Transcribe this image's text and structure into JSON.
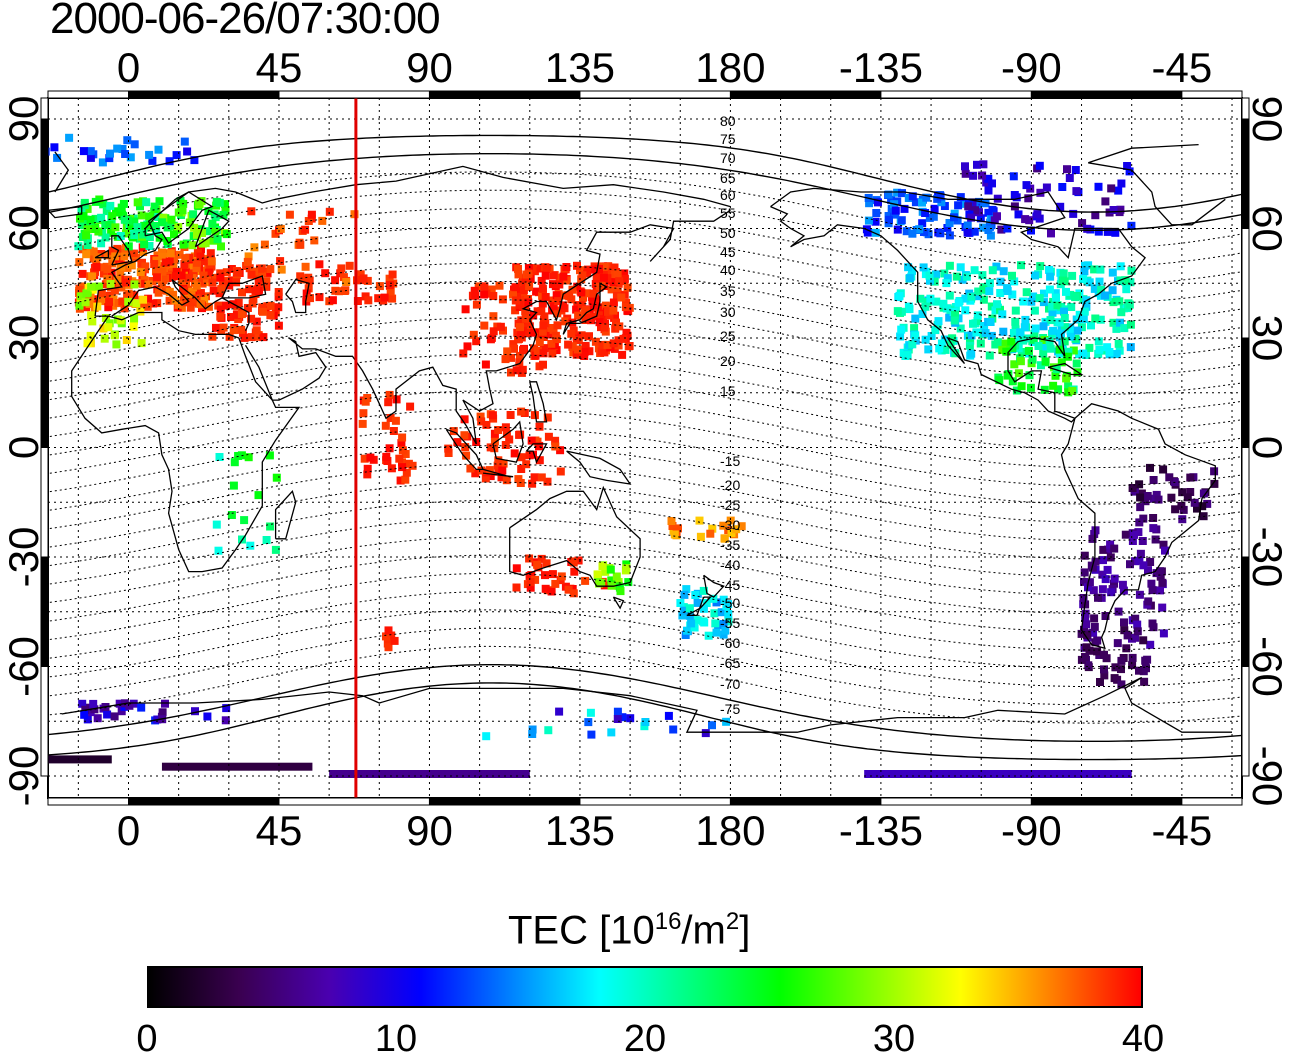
{
  "title": "2000-06-26/07:30:00",
  "lon_labels": [
    "0",
    "45",
    "90",
    "135",
    "180",
    "-135",
    "-90",
    "-45"
  ],
  "lat_labels": [
    "90",
    "60",
    "30",
    "0",
    "-30",
    "-60",
    "-90"
  ],
  "contour_labels_north": [
    "80",
    "75",
    "70",
    "65",
    "60",
    "55",
    "50",
    "45",
    "40",
    "35",
    "30",
    "25",
    "20",
    "15"
  ],
  "contour_labels_south": [
    "-15",
    "-20",
    "-25",
    "-30",
    "-35",
    "-40",
    "-45",
    "-50",
    "-55",
    "-60",
    "-65",
    "-70",
    "-75"
  ],
  "terminator_lon": 68,
  "colorbar": {
    "title_main": "TEC  [10",
    "title_exp": "16",
    "title_unit": "/m",
    "title_exp2": "2",
    "title_close": "]",
    "min": 0,
    "max": 40,
    "tick_labels": [
      "0",
      "10",
      "20",
      "30",
      "40"
    ],
    "colors": [
      "#000000",
      "#3a0050",
      "#4a00b0",
      "#0000ff",
      "#0080ff",
      "#00ffff",
      "#00ff80",
      "#00ff00",
      "#80ff00",
      "#ffff00",
      "#ff8000",
      "#ff0000"
    ]
  },
  "colors": {
    "terminator": "#e00000",
    "grid": "#000000"
  }
}
